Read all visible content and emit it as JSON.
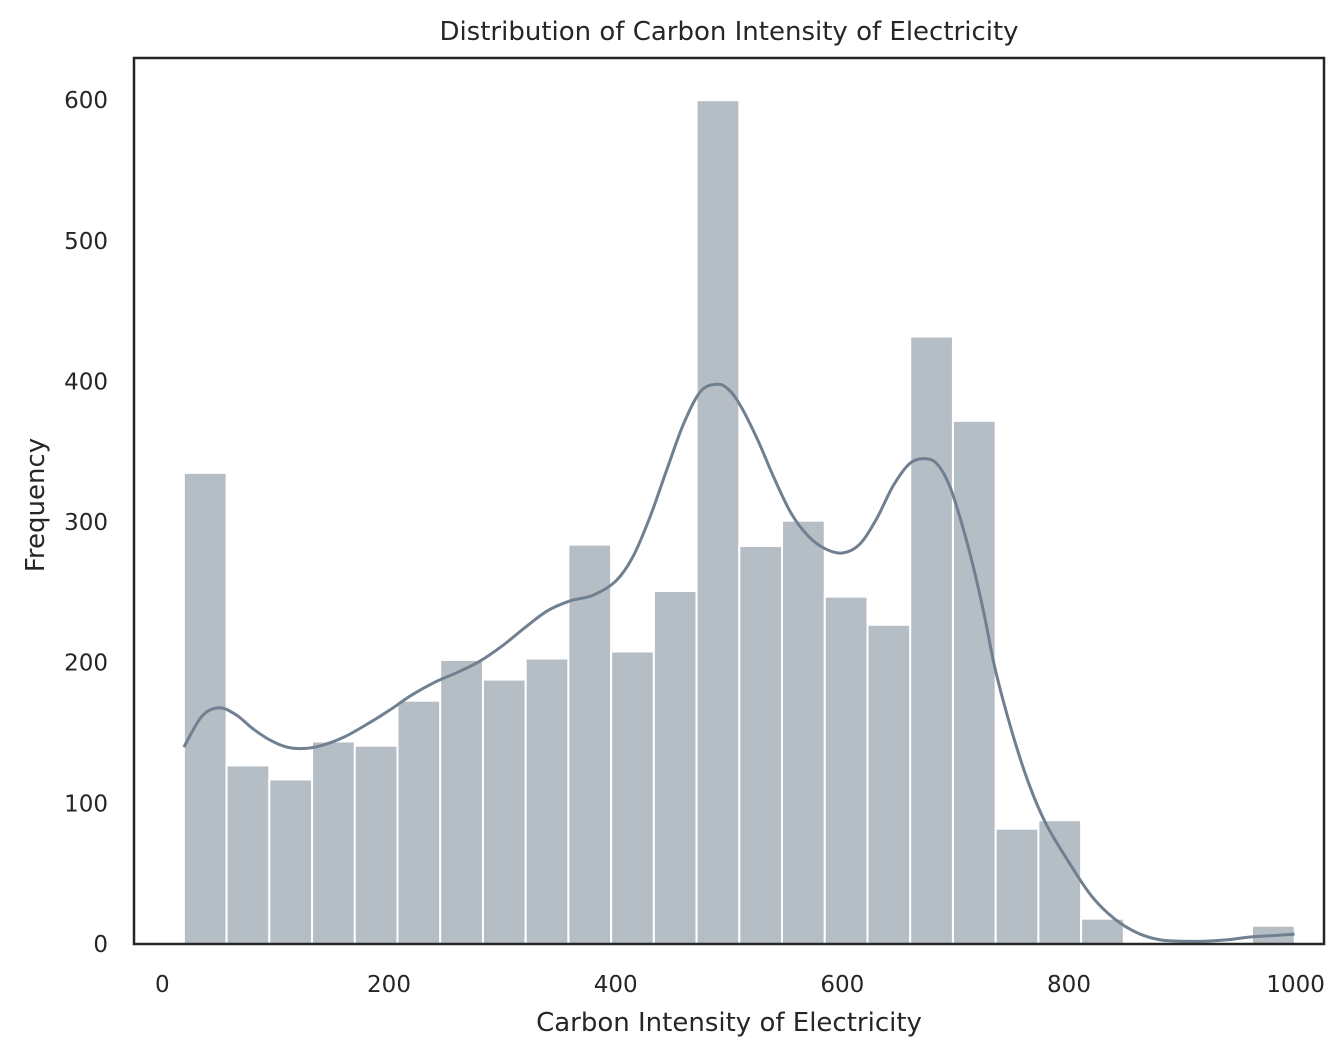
{
  "chart_data": {
    "type": "bar",
    "title": "Distribution of Carbon Intensity of Electricity",
    "xlabel": "Carbon Intensity of Electricity",
    "ylabel": "Frequency",
    "xlim": [
      -25,
      1025
    ],
    "ylim": [
      0,
      630
    ],
    "xticks": [
      0,
      200,
      400,
      600,
      800,
      1000
    ],
    "yticks": [
      0,
      100,
      200,
      300,
      400,
      500,
      600
    ],
    "grid": false,
    "bin_edges": [
      19,
      56.7,
      94.4,
      132.1,
      169.8,
      207.5,
      245.2,
      282.9,
      320.6,
      358.3,
      396,
      433.7,
      471.4,
      509.1,
      546.8,
      584.5,
      622.2,
      659.9,
      697.6,
      735.3,
      773,
      810.7,
      848.4,
      886.1,
      923.8,
      961.5,
      999.2
    ],
    "values": [
      335,
      127,
      117,
      144,
      141,
      173,
      202,
      188,
      203,
      284,
      208,
      251,
      600,
      283,
      301,
      247,
      227,
      432,
      372,
      82,
      88,
      18,
      0,
      0,
      0,
      13
    ],
    "kde": {
      "x": [
        19,
        35,
        50,
        65,
        80,
        95,
        110,
        125,
        140,
        160,
        180,
        200,
        220,
        240,
        260,
        280,
        300,
        320,
        340,
        360,
        380,
        400,
        415,
        430,
        445,
        460,
        475,
        490,
        500,
        510,
        525,
        540,
        555,
        570,
        585,
        600,
        615,
        630,
        645,
        660,
        675,
        685,
        695,
        705,
        715,
        725,
        735,
        750,
        765,
        780,
        800,
        820,
        840,
        860,
        880,
        900,
        920,
        940,
        960,
        980,
        999
      ],
      "y": [
        140,
        162,
        168,
        163,
        153,
        145,
        140,
        139,
        141,
        147,
        156,
        166,
        177,
        186,
        193,
        201,
        212,
        225,
        237,
        244,
        248,
        258,
        275,
        303,
        337,
        370,
        393,
        398,
        394,
        383,
        359,
        331,
        306,
        290,
        281,
        278,
        284,
        302,
        326,
        342,
        345,
        340,
        325,
        300,
        270,
        235,
        195,
        150,
        113,
        85,
        58,
        34,
        18,
        8,
        3,
        2,
        2,
        3,
        5,
        6,
        7
      ]
    },
    "colors": {
      "bar": "#b6bec5",
      "bar_edge": "#ffffff",
      "kde": "#708090",
      "frame": "#262626",
      "text": "#262626"
    }
  }
}
